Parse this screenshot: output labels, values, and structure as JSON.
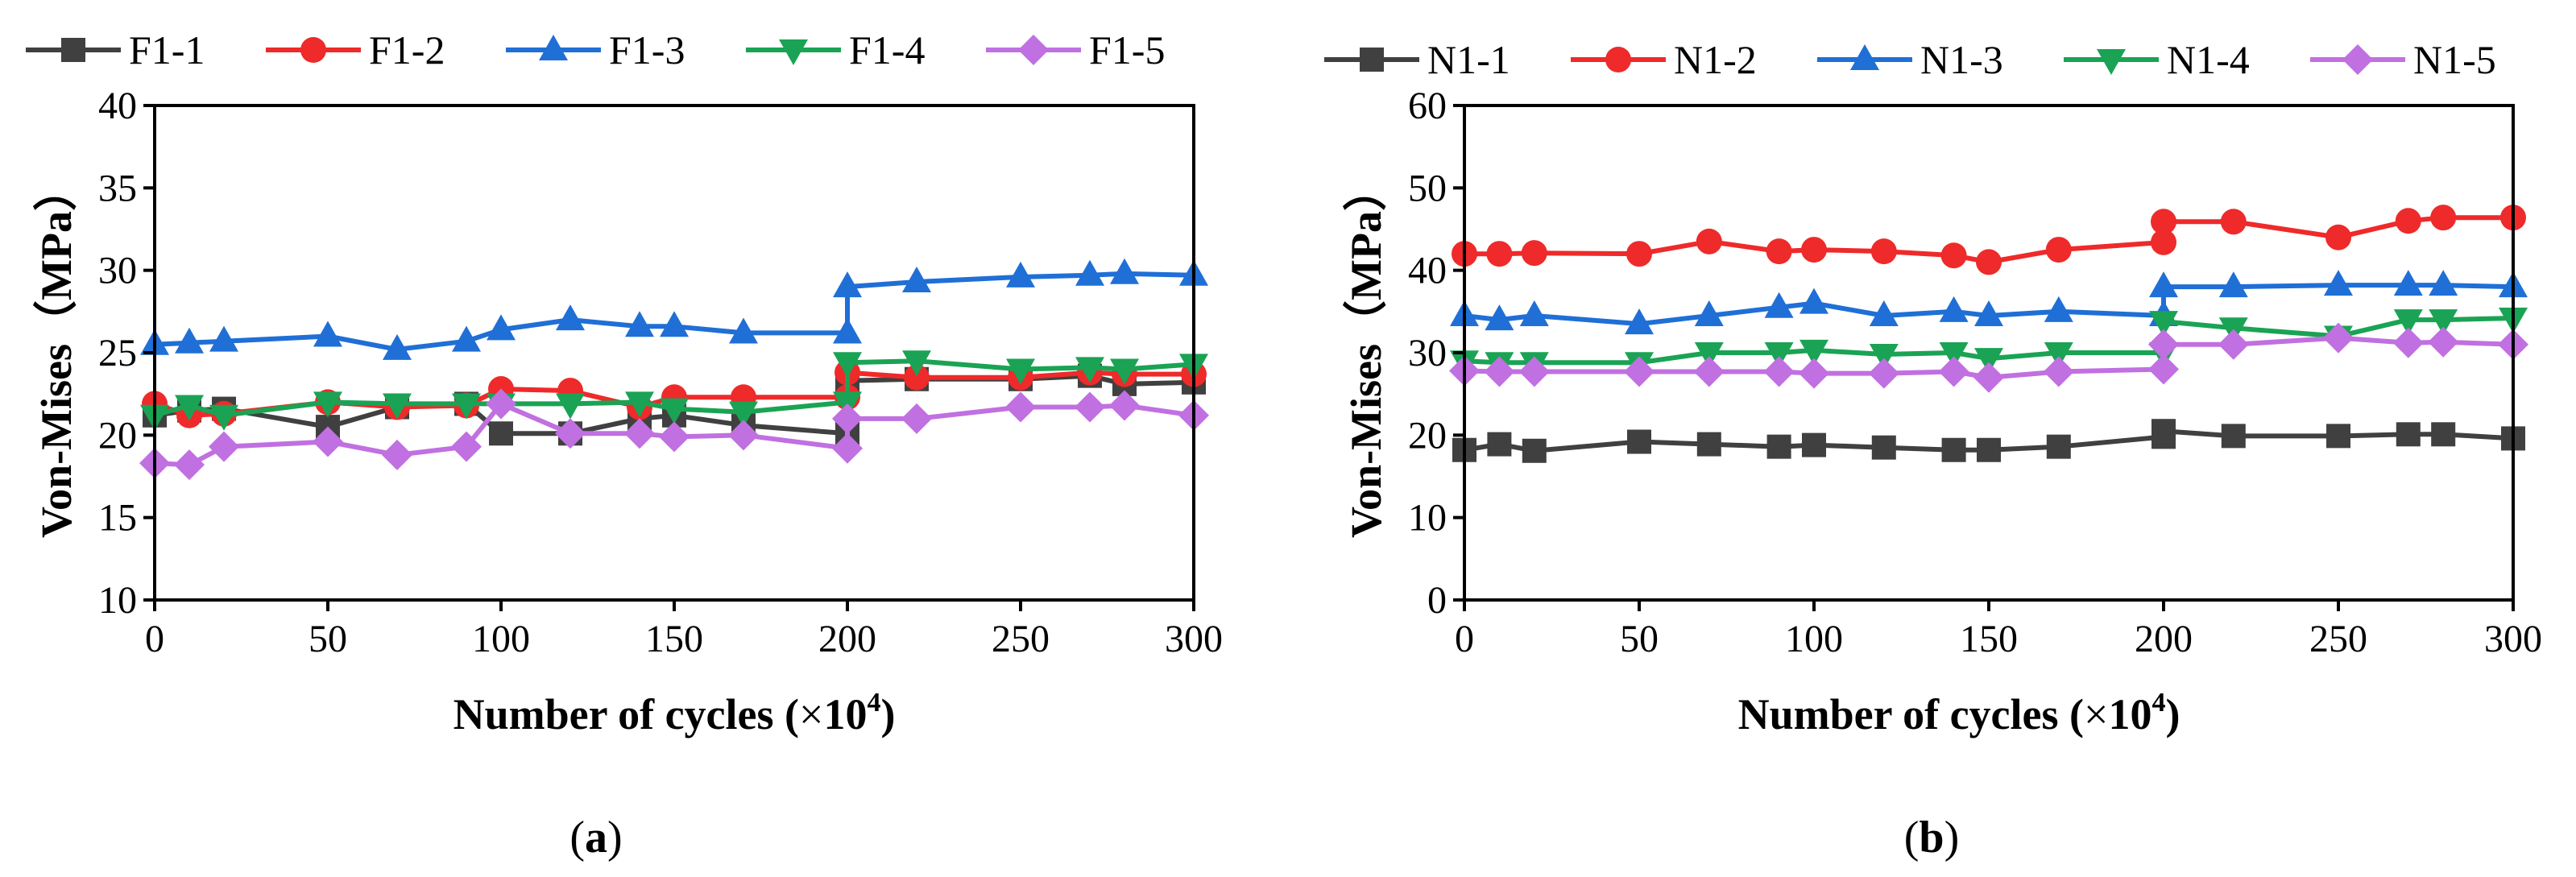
{
  "figure_captions": {
    "a_open": "(",
    "a_letter": "a",
    "a_close": ")",
    "b_open": "(",
    "b_letter": "b",
    "b_close": ")"
  },
  "chart_data": [
    {
      "id": "a",
      "type": "line",
      "title": "",
      "xlabel": "Number of cycles (×10⁴)",
      "xlabel_main": "Number of cycles (",
      "xlabel_times": "×",
      "xlabel_base": "10",
      "xlabel_exp": "4",
      "xlabel_close": ")",
      "ylabel": "Von-Mises（MPa）",
      "xlim": [
        0,
        300
      ],
      "ylim": [
        10,
        40
      ],
      "xticks": [
        0,
        50,
        100,
        150,
        200,
        250,
        300
      ],
      "yticks": [
        10,
        15,
        20,
        25,
        30,
        35,
        40
      ],
      "legend_position": "top",
      "grid": false,
      "series": [
        {
          "name": "F1-1",
          "color": "#404040",
          "marker": "square",
          "x": [
            0,
            10,
            20,
            50,
            70,
            90,
            100,
            120,
            140,
            150,
            170,
            200,
            200,
            220,
            250,
            270,
            280,
            300
          ],
          "y": [
            21.2,
            21.5,
            21.6,
            20.5,
            21.7,
            21.9,
            20.1,
            20.1,
            21.0,
            21.2,
            20.6,
            20.1,
            23.3,
            23.4,
            23.4,
            23.6,
            23.1,
            23.2
          ]
        },
        {
          "name": "F1-2",
          "color": "#ee2a2a",
          "marker": "circle",
          "x": [
            0,
            10,
            20,
            50,
            70,
            90,
            100,
            120,
            140,
            150,
            170,
            200,
            200,
            220,
            250,
            270,
            280,
            300
          ],
          "y": [
            21.9,
            21.2,
            21.3,
            22.0,
            21.7,
            21.8,
            22.8,
            22.7,
            21.7,
            22.3,
            22.3,
            22.3,
            23.8,
            23.5,
            23.5,
            23.8,
            23.7,
            23.7
          ]
        },
        {
          "name": "F1-3",
          "color": "#1f6fd6",
          "marker": "triangle-up",
          "x": [
            0,
            10,
            20,
            50,
            70,
            90,
            100,
            120,
            140,
            150,
            170,
            200,
            200,
            220,
            250,
            270,
            280,
            300
          ],
          "y": [
            25.5,
            25.6,
            25.7,
            26.0,
            25.2,
            25.7,
            26.4,
            27.0,
            26.6,
            26.6,
            26.2,
            26.2,
            29.0,
            29.3,
            29.6,
            29.7,
            29.8,
            29.7
          ]
        },
        {
          "name": "F1-4",
          "color": "#1aa354",
          "marker": "triangle-down",
          "x": [
            0,
            10,
            20,
            50,
            70,
            90,
            100,
            120,
            140,
            150,
            170,
            200,
            200,
            220,
            250,
            270,
            280,
            300
          ],
          "y": [
            21.2,
            21.8,
            21.2,
            22.0,
            21.9,
            21.9,
            21.9,
            21.9,
            22.0,
            21.6,
            21.4,
            22.0,
            24.4,
            24.5,
            24.0,
            24.1,
            24.0,
            24.3
          ]
        },
        {
          "name": "F1-5",
          "color": "#c070e0",
          "marker": "diamond",
          "x": [
            0,
            10,
            20,
            50,
            70,
            90,
            100,
            120,
            140,
            150,
            170,
            200,
            200,
            220,
            250,
            270,
            280,
            300
          ],
          "y": [
            18.3,
            18.2,
            19.3,
            19.6,
            18.8,
            19.3,
            21.9,
            20.1,
            20.1,
            19.9,
            20.0,
            19.2,
            21.0,
            21.0,
            21.7,
            21.7,
            21.8,
            21.2
          ]
        }
      ]
    },
    {
      "id": "b",
      "type": "line",
      "title": "",
      "xlabel": "Number of cycles (×10⁴)",
      "xlabel_main": "Number of cycles (",
      "xlabel_times": "×",
      "xlabel_base": "10",
      "xlabel_exp": "4",
      "xlabel_close": ")",
      "ylabel": "Von-Mises（MPa）",
      "xlim": [
        0,
        300
      ],
      "ylim": [
        0,
        60
      ],
      "xticks": [
        0,
        50,
        100,
        150,
        200,
        250,
        300
      ],
      "yticks": [
        0,
        10,
        20,
        30,
        40,
        50,
        60
      ],
      "legend_position": "top",
      "grid": false,
      "series": [
        {
          "name": "N1-1",
          "color": "#404040",
          "marker": "square",
          "x": [
            0,
            10,
            20,
            50,
            70,
            90,
            100,
            120,
            140,
            150,
            170,
            200,
            200,
            220,
            250,
            270,
            280,
            300
          ],
          "y": [
            18.2,
            18.9,
            18.1,
            19.2,
            18.9,
            18.6,
            18.8,
            18.5,
            18.2,
            18.2,
            18.6,
            19.8,
            20.5,
            19.9,
            19.9,
            20.1,
            20.1,
            19.6
          ]
        },
        {
          "name": "N1-2",
          "color": "#ee2a2a",
          "marker": "circle",
          "x": [
            0,
            10,
            20,
            50,
            70,
            90,
            100,
            120,
            140,
            150,
            170,
            200,
            200,
            220,
            250,
            270,
            280,
            300
          ],
          "y": [
            42.0,
            42.0,
            42.1,
            42.0,
            43.5,
            42.3,
            42.5,
            42.3,
            41.8,
            41.0,
            42.5,
            43.4,
            45.9,
            45.9,
            44.0,
            46.0,
            46.4,
            46.4
          ]
        },
        {
          "name": "N1-3",
          "color": "#1f6fd6",
          "marker": "triangle-up",
          "x": [
            0,
            10,
            20,
            50,
            70,
            90,
            100,
            120,
            140,
            150,
            170,
            200,
            200,
            220,
            250,
            270,
            280,
            300
          ],
          "y": [
            34.5,
            34.0,
            34.5,
            33.5,
            34.5,
            35.5,
            36.0,
            34.5,
            35.0,
            34.5,
            35.0,
            34.5,
            38.0,
            38.0,
            38.2,
            38.2,
            38.2,
            38.0
          ]
        },
        {
          "name": "N1-4",
          "color": "#1aa354",
          "marker": "triangle-down",
          "x": [
            0,
            10,
            20,
            50,
            70,
            90,
            100,
            120,
            140,
            150,
            170,
            200,
            200,
            220,
            250,
            270,
            280,
            300
          ],
          "y": [
            29.0,
            28.8,
            28.8,
            28.8,
            30.0,
            30.0,
            30.3,
            29.8,
            30.0,
            29.3,
            30.0,
            30.0,
            33.8,
            33.0,
            32.0,
            34.0,
            34.0,
            34.2
          ]
        },
        {
          "name": "N1-5",
          "color": "#c070e0",
          "marker": "diamond",
          "x": [
            0,
            10,
            20,
            50,
            70,
            90,
            100,
            120,
            140,
            150,
            170,
            200,
            200,
            220,
            250,
            270,
            280,
            300
          ],
          "y": [
            27.8,
            27.7,
            27.7,
            27.7,
            27.7,
            27.7,
            27.5,
            27.5,
            27.7,
            27.0,
            27.7,
            28.0,
            31.0,
            31.0,
            31.8,
            31.2,
            31.3,
            31.0
          ]
        }
      ]
    }
  ]
}
